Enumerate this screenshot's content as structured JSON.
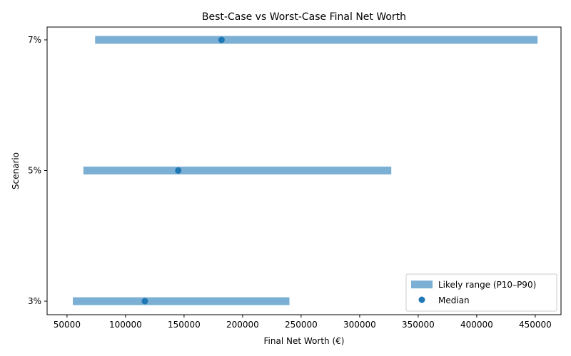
{
  "chart_data": {
    "type": "range",
    "title": "Best-Case vs Worst-Case Final Net Worth",
    "xlabel": "Final Net Worth (€)",
    "ylabel": "Scenario",
    "xlim": [
      33000,
      472000
    ],
    "x_ticks": [
      50000,
      100000,
      150000,
      200000,
      250000,
      300000,
      350000,
      400000,
      450000
    ],
    "categories": [
      "3%",
      "5%",
      "7%"
    ],
    "series": [
      {
        "name": "Likely range (P10–P90)",
        "color": "#7bafd4",
        "low": [
          55000,
          64000,
          74000
        ],
        "high": [
          240000,
          327000,
          452000
        ]
      },
      {
        "name": "Median",
        "color": "#1f77b4",
        "values": [
          116500,
          145000,
          182000
        ]
      }
    ],
    "legend_position": "bottom-right",
    "grid": false
  }
}
